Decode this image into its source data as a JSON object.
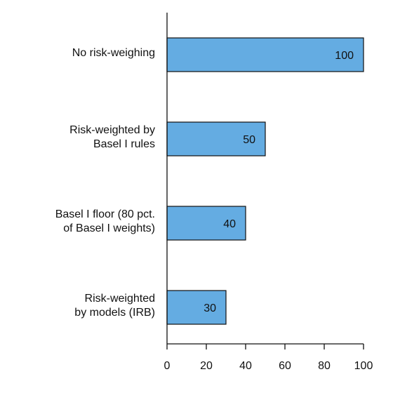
{
  "chart_data": {
    "type": "bar",
    "orientation": "horizontal",
    "categories": [
      [
        "No risk-weighing"
      ],
      [
        "Risk-weighted by",
        "Basel I rules"
      ],
      [
        "Basel I floor (80 pct.",
        "of Basel I weights)"
      ],
      [
        "Risk-weighted",
        "by models (IRB)"
      ]
    ],
    "values": [
      100,
      50,
      40,
      30
    ],
    "data_labels": [
      "100",
      "50",
      "40",
      "30"
    ],
    "xlim": [
      0,
      100
    ],
    "x_ticks": [
      0,
      20,
      40,
      60,
      80,
      100
    ],
    "x_tick_labels": [
      "0",
      "20",
      "40",
      "60",
      "80",
      "100"
    ],
    "title": "",
    "xlabel": "",
    "ylabel": "",
    "grid": false,
    "legend": "none",
    "bar_color": "#64ace2",
    "bar_edge_color": "#111111",
    "axis_color": "#111111"
  }
}
